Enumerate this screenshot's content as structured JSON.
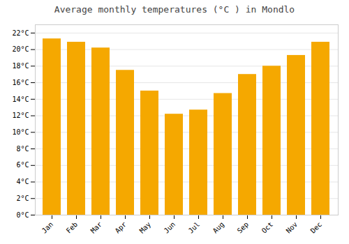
{
  "chart_data": {
    "type": "bar",
    "title": "Average monthly temperatures (°C ) in Mondlo",
    "categories": [
      "Jan",
      "Feb",
      "Mar",
      "Apr",
      "May",
      "Jun",
      "Jul",
      "Aug",
      "Sep",
      "Oct",
      "Nov",
      "Dec"
    ],
    "values": [
      21.3,
      20.9,
      20.2,
      17.5,
      15.0,
      12.2,
      12.7,
      14.7,
      17.0,
      18.0,
      19.3,
      20.9
    ],
    "color": "#F5A800",
    "ylim": [
      0,
      23
    ],
    "yticks": [
      {
        "value": 0,
        "label": "0°C"
      },
      {
        "value": 2,
        "label": "2°C"
      },
      {
        "value": 4,
        "label": "4°C"
      },
      {
        "value": 6,
        "label": "6°C"
      },
      {
        "value": 8,
        "label": "8°C"
      },
      {
        "value": 10,
        "label": "10°C"
      },
      {
        "value": 12,
        "label": "12°C"
      },
      {
        "value": 14,
        "label": "14°C"
      },
      {
        "value": 16,
        "label": "16°C"
      },
      {
        "value": 18,
        "label": "18°C"
      },
      {
        "value": 20,
        "label": "20°C"
      },
      {
        "value": 22,
        "label": "22°C"
      }
    ],
    "grid": true
  }
}
